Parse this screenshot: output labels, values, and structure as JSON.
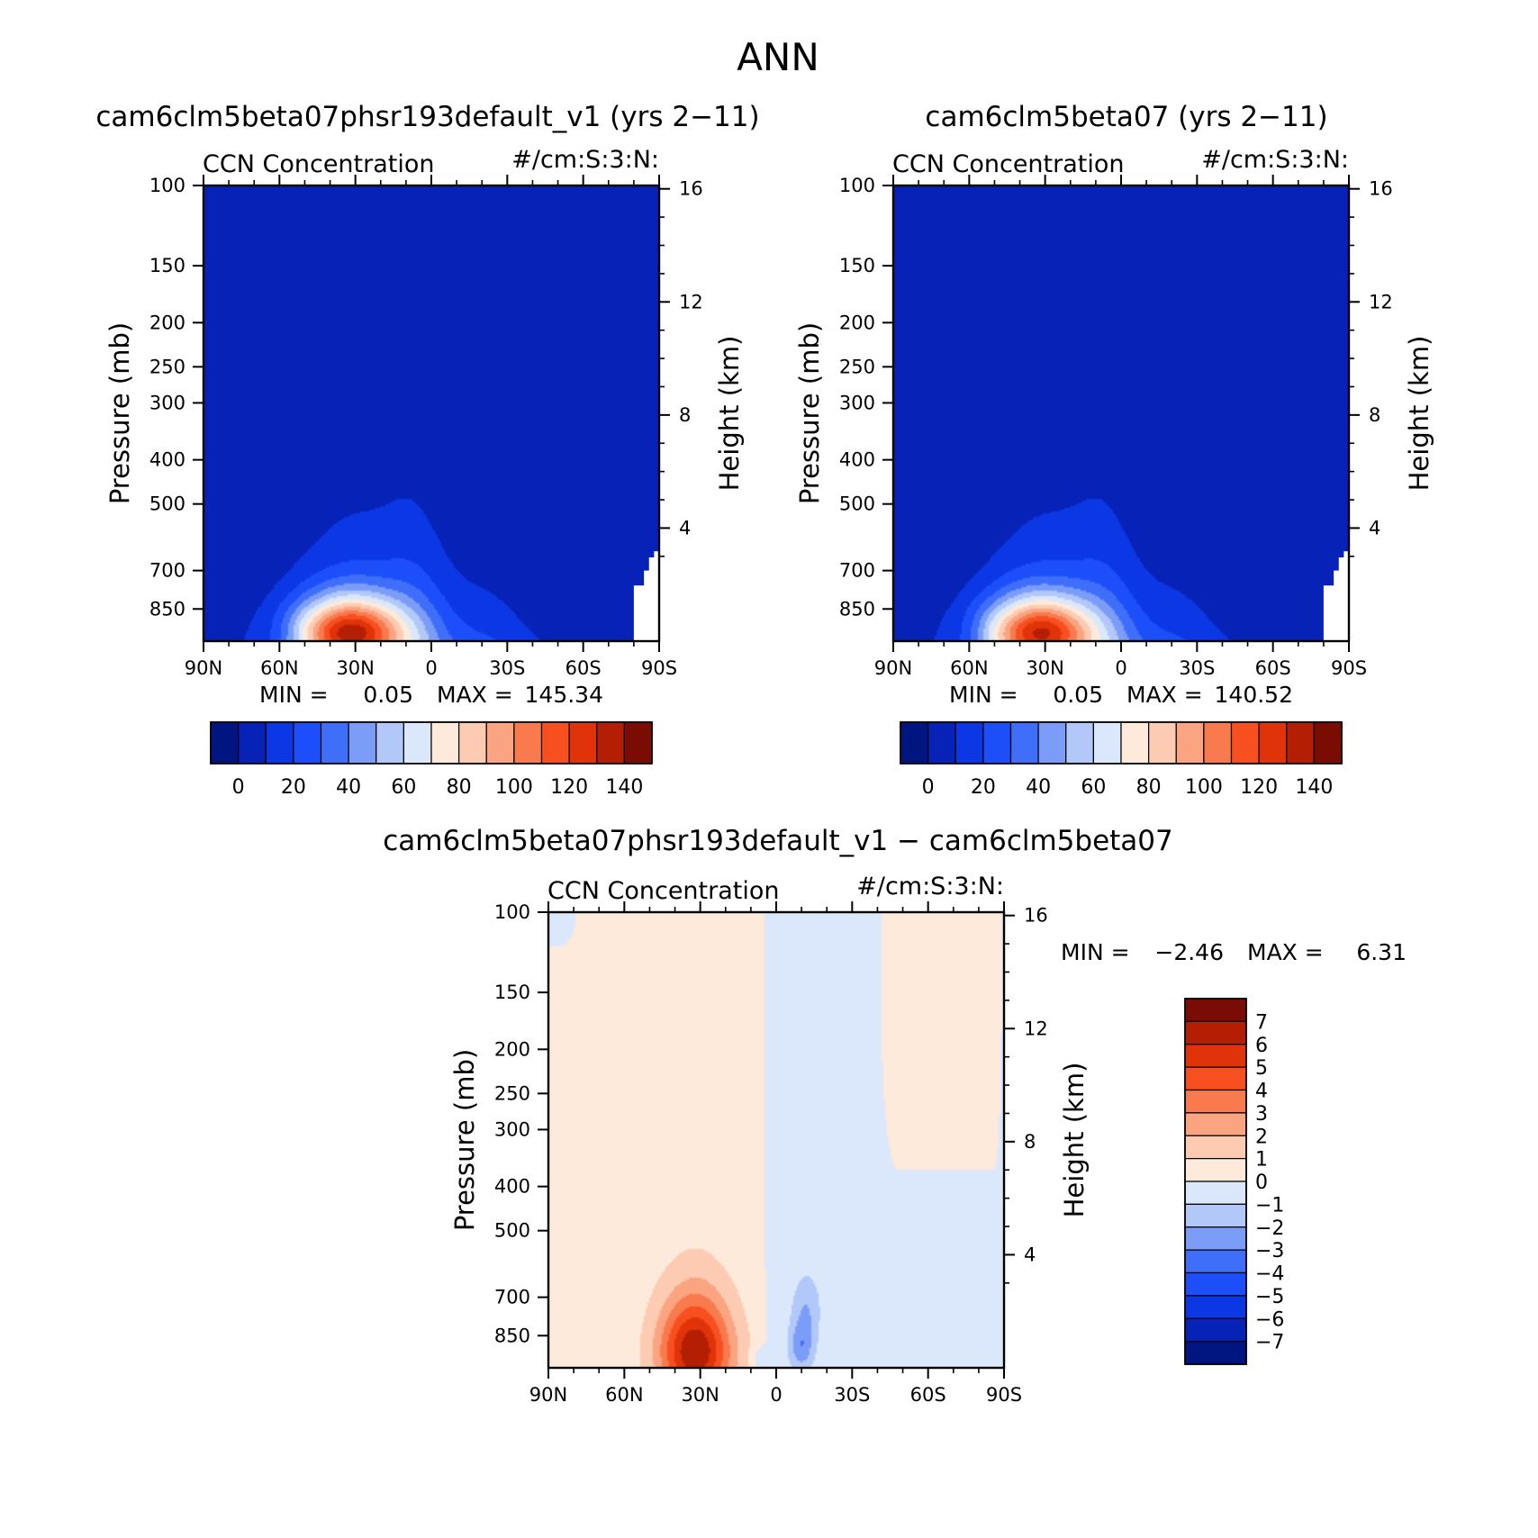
{
  "page_title": "ANN",
  "diff_title": "cam6clm5beta07phsr193default_v1 − cam6clm5beta07",
  "chart_data": [
    {
      "type": "heatmap",
      "title": "cam6clm5beta07phsr193default_v1 (yrs 2−11)",
      "left_label": "CCN Concentration",
      "right_label": "#/cm:S:3:N:",
      "ylabel": "Pressure (mb)",
      "ylabel_right": "Height (km)",
      "xticks": [
        "90N",
        "60N",
        "30N",
        "0",
        "30S",
        "60S",
        "90S"
      ],
      "yticks": [
        100,
        150,
        200,
        250,
        300,
        400,
        500,
        700,
        850
      ],
      "yticks_right": [
        4,
        8,
        12,
        16
      ],
      "ylim": [
        100,
        1000
      ],
      "yscale": "log-pressure",
      "stats": {
        "min_label": "MIN =",
        "min": "0.05",
        "max_label": "MAX =",
        "max": "145.34"
      },
      "colorbar_ticks": [
        0,
        20,
        40,
        60,
        80,
        100,
        120,
        140
      ],
      "peak_lat": 32,
      "peak_value": 145.34
    },
    {
      "type": "heatmap",
      "title": "cam6clm5beta07 (yrs 2−11)",
      "left_label": "CCN Concentration",
      "right_label": "#/cm:S:3:N:",
      "ylabel": "Pressure (mb)",
      "ylabel_right": "Height (km)",
      "xticks": [
        "90N",
        "60N",
        "30N",
        "0",
        "30S",
        "60S",
        "90S"
      ],
      "yticks": [
        100,
        150,
        200,
        250,
        300,
        400,
        500,
        700,
        850
      ],
      "yticks_right": [
        4,
        8,
        12,
        16
      ],
      "ylim": [
        100,
        1000
      ],
      "yscale": "log-pressure",
      "stats": {
        "min_label": "MIN =",
        "min": "0.05",
        "max_label": "MAX =",
        "max": "140.52"
      },
      "colorbar_ticks": [
        0,
        20,
        40,
        60,
        80,
        100,
        120,
        140
      ],
      "peak_lat": 32,
      "peak_value": 140.52
    },
    {
      "type": "heatmap",
      "left_label": "CCN Concentration",
      "right_label": "#/cm:S:3:N:",
      "ylabel": "Pressure (mb)",
      "ylabel_right": "Height (km)",
      "xticks": [
        "90N",
        "60N",
        "30N",
        "0",
        "30S",
        "60S",
        "90S"
      ],
      "yticks": [
        100,
        150,
        200,
        250,
        300,
        400,
        500,
        700,
        850
      ],
      "yticks_right": [
        4,
        8,
        12,
        16
      ],
      "ylim": [
        100,
        1000
      ],
      "yscale": "log-pressure",
      "stats": {
        "min_label": "MIN =",
        "min": "−2.46",
        "max_label": "MAX =",
        "max": "6.31"
      },
      "colorbar_ticks": [
        "7",
        "6",
        "5",
        "4",
        "3",
        "2",
        "1",
        "0",
        "−1",
        "−2",
        "−3",
        "−4",
        "−5",
        "−6",
        "−7"
      ]
    }
  ],
  "colors": {
    "seq": [
      "#00157f",
      "#0722b6",
      "#0b37e5",
      "#1c4ff9",
      "#3f6ef9",
      "#7b9df8",
      "#b2c8f8",
      "#dbe8fb",
      "#feeadb",
      "#fccbb2",
      "#faa482",
      "#f97a4d",
      "#f74f20",
      "#e13309",
      "#b41f04",
      "#7a0c04"
    ],
    "diff_cb": [
      "#7a0c04",
      "#b41f04",
      "#e13309",
      "#f74f20",
      "#f97a4d",
      "#faa482",
      "#fccbb2",
      "#feeadb",
      "#dbe8fb",
      "#b2c8f8",
      "#7b9df8",
      "#3f6ef9",
      "#1c4ff9",
      "#0b37e5",
      "#0722b6",
      "#00157f"
    ]
  }
}
